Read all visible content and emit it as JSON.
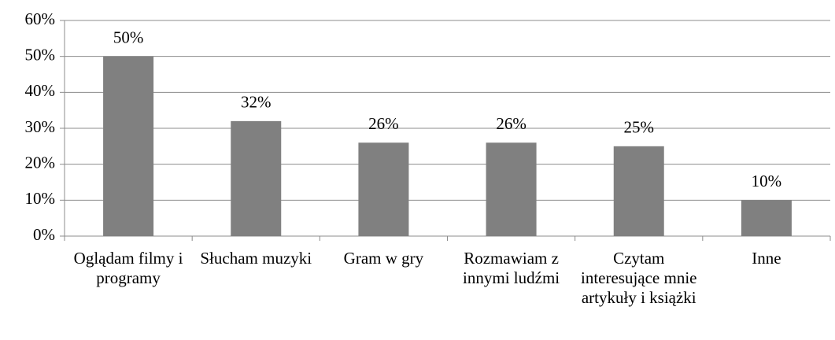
{
  "chart_data": {
    "type": "bar",
    "categories": [
      "Oglądam filmy i programy",
      "Słucham muzyki",
      "Gram w gry",
      "Rozmawiam z innymi ludźmi",
      "Czytam interesujące mnie artykuły i książki",
      "Inne"
    ],
    "values": [
      50,
      32,
      26,
      26,
      25,
      10
    ],
    "value_labels": [
      "50%",
      "32%",
      "26%",
      "26%",
      "25%",
      "10%"
    ],
    "color": "#808080",
    "ylim": [
      0,
      60
    ],
    "yticks": [
      {
        "value": 0,
        "label": "0%"
      },
      {
        "value": 10,
        "label": "10%"
      },
      {
        "value": 20,
        "label": "20%"
      },
      {
        "value": 30,
        "label": "30%"
      },
      {
        "value": 40,
        "label": "40%"
      },
      {
        "value": 50,
        "label": "50%"
      },
      {
        "value": 60,
        "label": "60%"
      }
    ],
    "grid": true
  }
}
